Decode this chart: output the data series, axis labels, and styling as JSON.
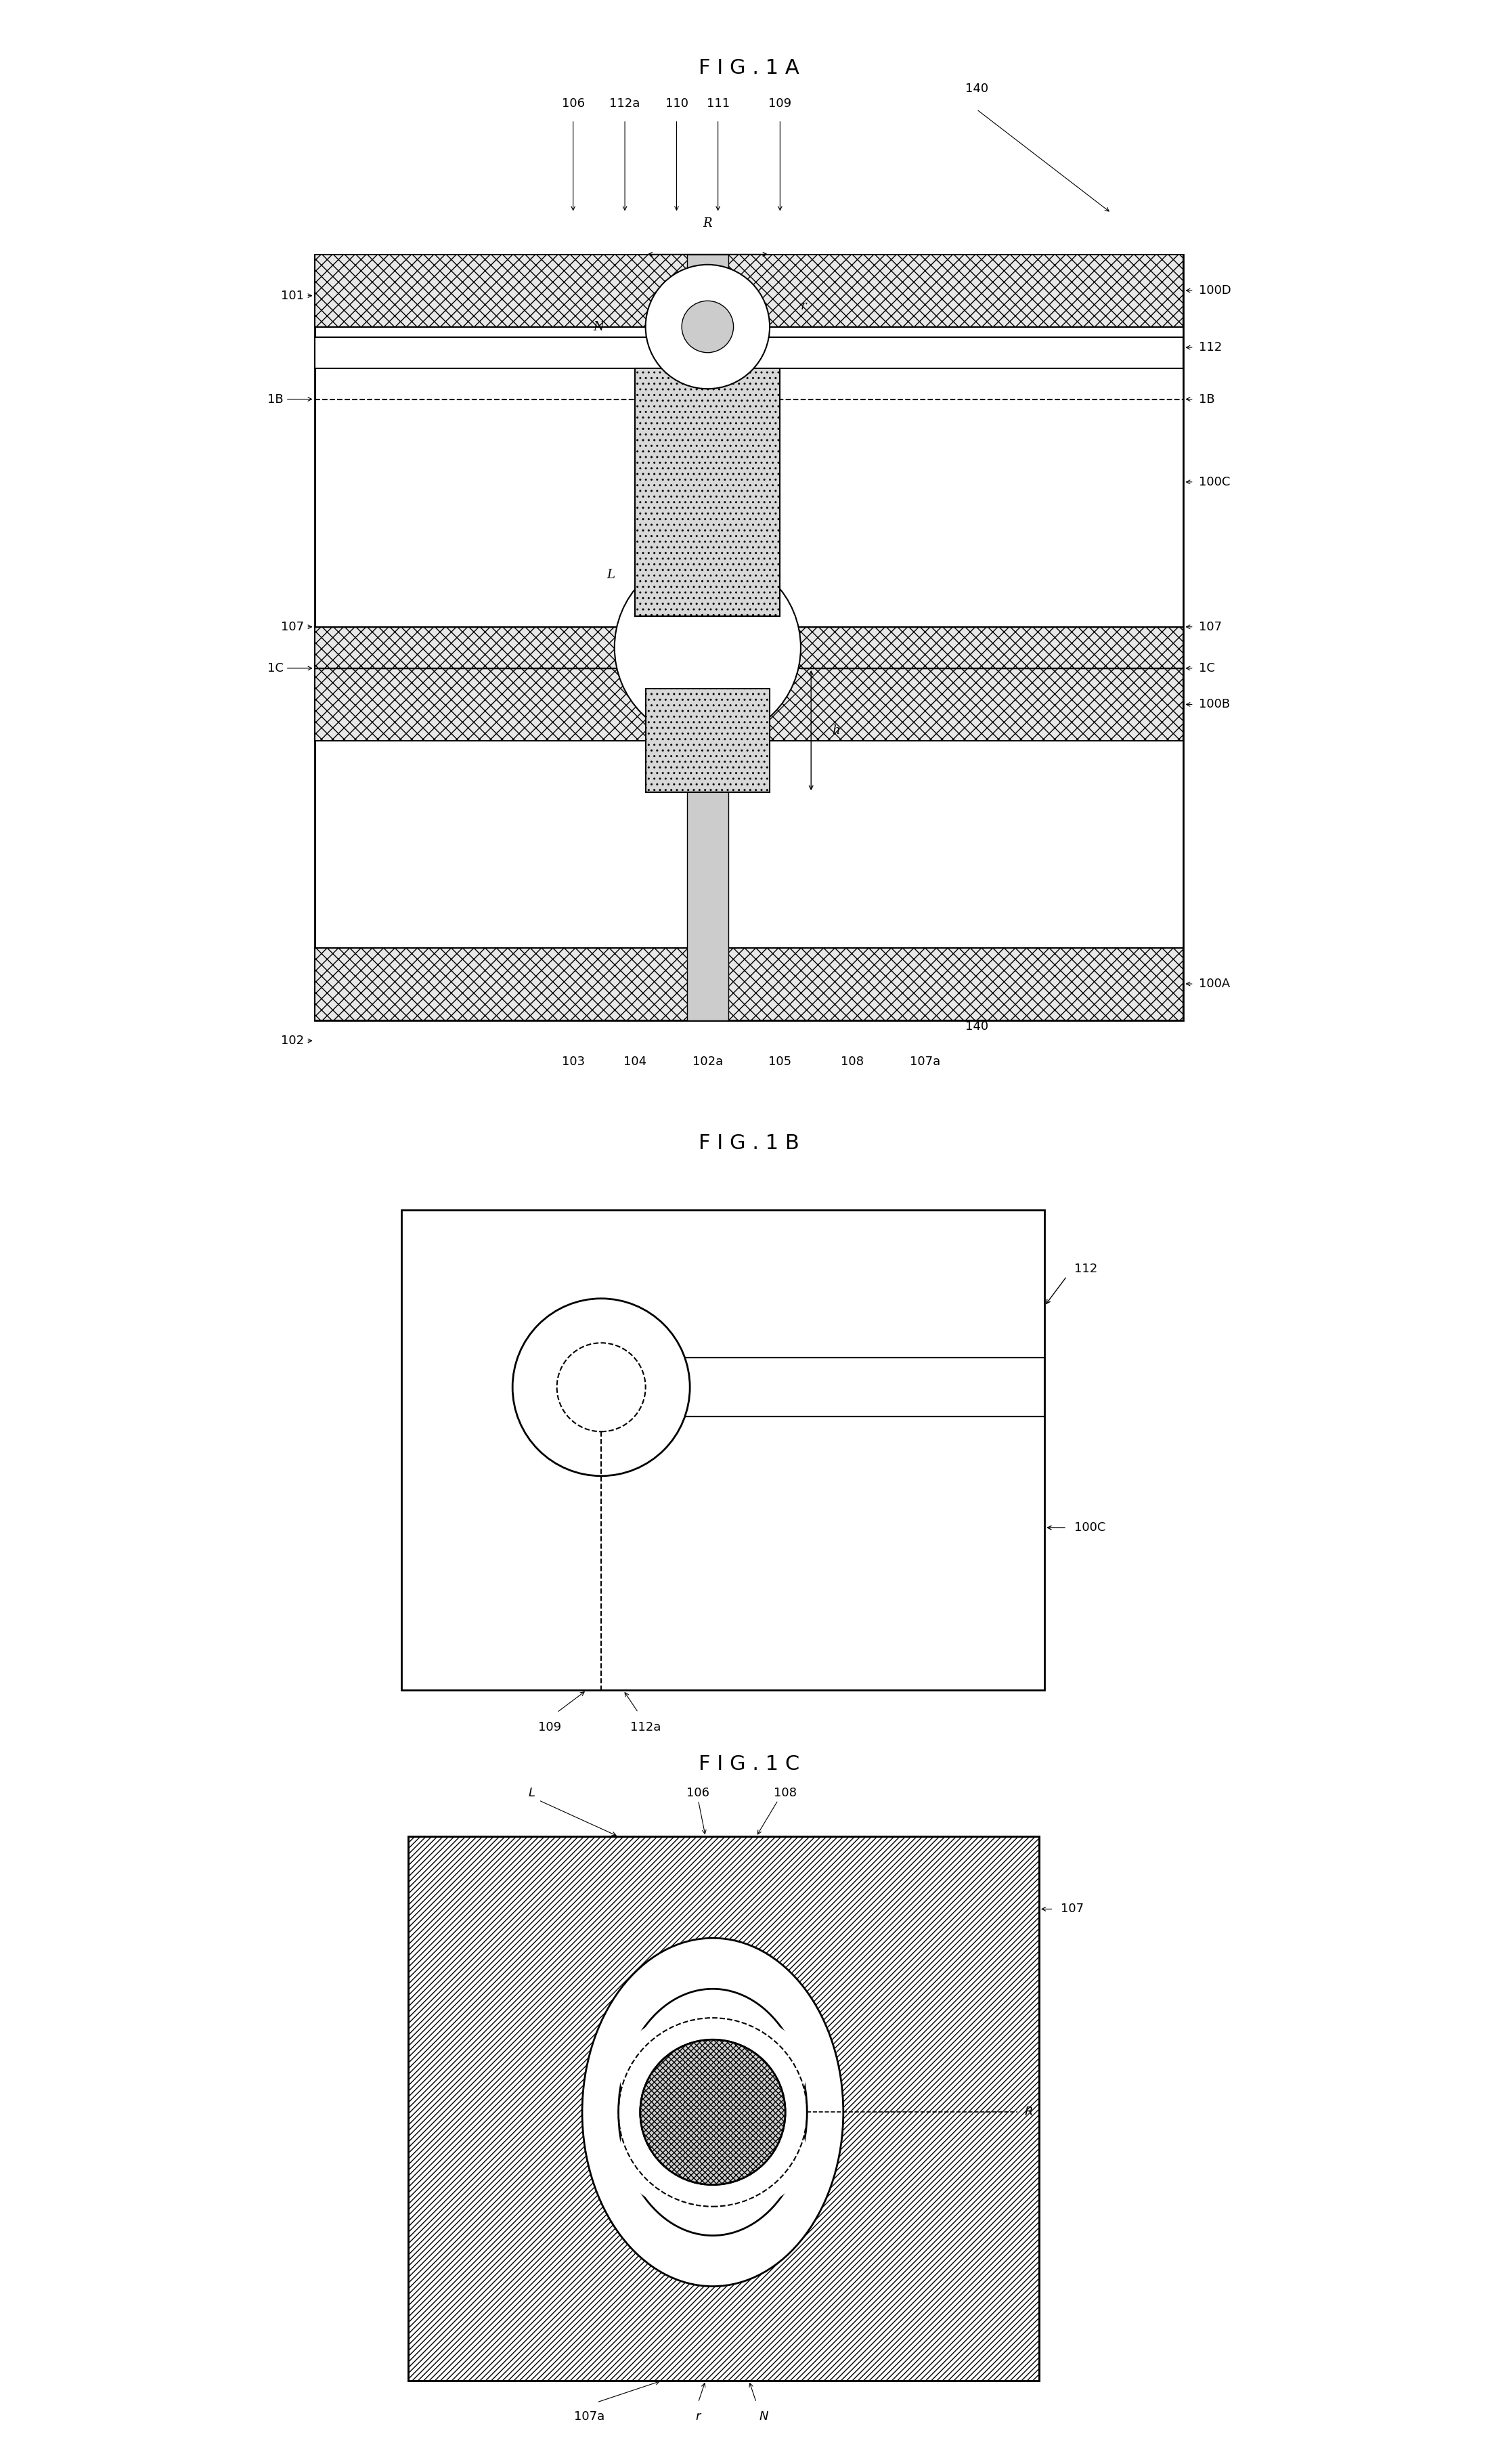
{
  "fig_title_1a": "F I G . 1 A",
  "fig_title_1b": "F I G . 1 B",
  "fig_title_1c": "F I G . 1 C",
  "bg_color": "#ffffff",
  "font_size_title": 22,
  "font_size_label": 13,
  "font_size_small": 11
}
